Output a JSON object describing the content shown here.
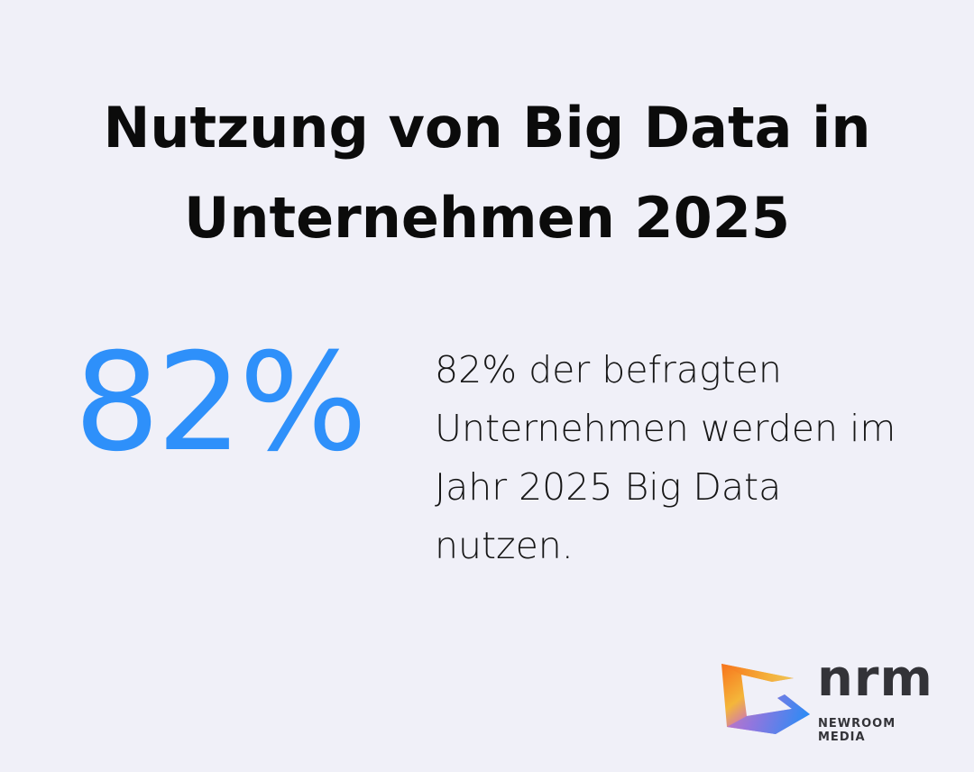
{
  "title": "Nutzung von Big Data in Unternehmen 2025",
  "stat": {
    "value": "82%",
    "color": "#2e90fa"
  },
  "description": "82% der befragten Unternehmen werden im Jahr 2025 Big Data nutzen.",
  "logo": {
    "wordmark": "nrm",
    "tagline": "NEWROOM MEDIA"
  }
}
